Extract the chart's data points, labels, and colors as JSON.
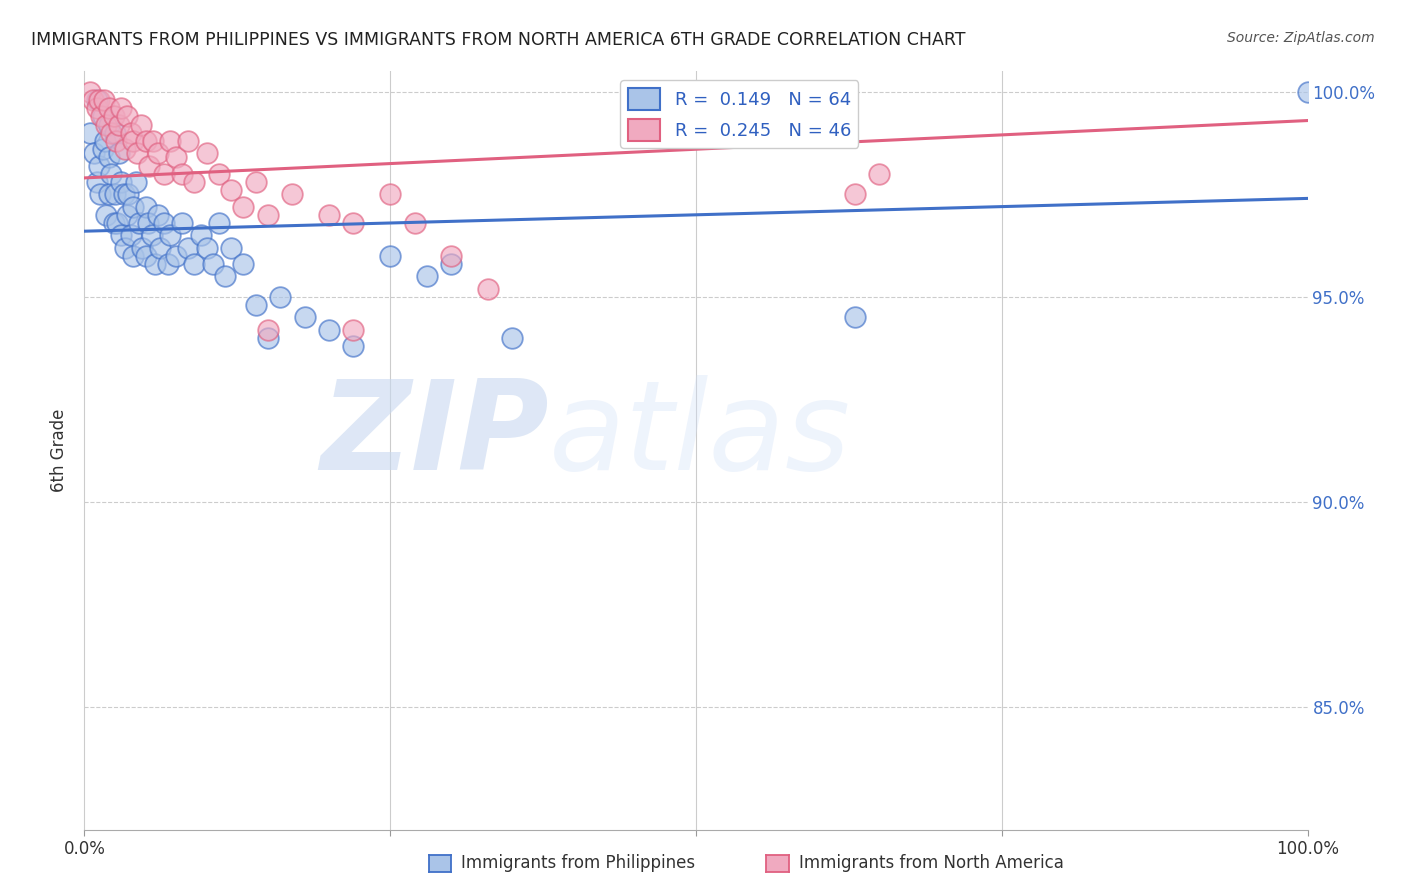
{
  "title": "IMMIGRANTS FROM PHILIPPINES VS IMMIGRANTS FROM NORTH AMERICA 6TH GRADE CORRELATION CHART",
  "source": "Source: ZipAtlas.com",
  "ylabel": "6th Grade",
  "x_min": 0.0,
  "x_max": 1.0,
  "y_min": 0.82,
  "y_max": 1.005,
  "y_ticks": [
    0.85,
    0.9,
    0.95,
    1.0
  ],
  "y_tick_labels": [
    "85.0%",
    "90.0%",
    "95.0%",
    "100.0%"
  ],
  "blue_R": 0.149,
  "blue_N": 64,
  "pink_R": 0.245,
  "pink_N": 46,
  "blue_label": "Immigrants from Philippines",
  "pink_label": "Immigrants from North America",
  "blue_color": "#aac4e8",
  "pink_color": "#f0aac0",
  "blue_line_color": "#4070c8",
  "pink_line_color": "#e06080",
  "watermark_zip": "ZIP",
  "watermark_atlas": "atlas",
  "blue_line_x0": 0.0,
  "blue_line_y0": 0.966,
  "blue_line_x1": 1.0,
  "blue_line_y1": 0.974,
  "pink_line_x0": 0.0,
  "pink_line_y0": 0.979,
  "pink_line_x1": 1.0,
  "pink_line_y1": 0.993,
  "blue_x": [
    0.005,
    0.008,
    0.01,
    0.01,
    0.012,
    0.013,
    0.015,
    0.015,
    0.017,
    0.018,
    0.02,
    0.02,
    0.02,
    0.022,
    0.024,
    0.025,
    0.025,
    0.027,
    0.028,
    0.03,
    0.03,
    0.032,
    0.033,
    0.035,
    0.036,
    0.038,
    0.04,
    0.04,
    0.042,
    0.045,
    0.047,
    0.05,
    0.05,
    0.052,
    0.055,
    0.058,
    0.06,
    0.062,
    0.065,
    0.068,
    0.07,
    0.075,
    0.08,
    0.085,
    0.09,
    0.095,
    0.1,
    0.105,
    0.11,
    0.115,
    0.12,
    0.13,
    0.14,
    0.15,
    0.16,
    0.18,
    0.2,
    0.22,
    0.25,
    0.28,
    0.3,
    0.35,
    0.63,
    1.0
  ],
  "blue_y": [
    0.99,
    0.985,
    0.998,
    0.978,
    0.982,
    0.975,
    0.994,
    0.986,
    0.988,
    0.97,
    0.992,
    0.984,
    0.975,
    0.98,
    0.968,
    0.99,
    0.975,
    0.968,
    0.985,
    0.978,
    0.965,
    0.975,
    0.962,
    0.97,
    0.975,
    0.965,
    0.972,
    0.96,
    0.978,
    0.968,
    0.962,
    0.972,
    0.96,
    0.968,
    0.965,
    0.958,
    0.97,
    0.962,
    0.968,
    0.958,
    0.965,
    0.96,
    0.968,
    0.962,
    0.958,
    0.965,
    0.962,
    0.958,
    0.968,
    0.955,
    0.962,
    0.958,
    0.948,
    0.94,
    0.95,
    0.945,
    0.942,
    0.938,
    0.96,
    0.955,
    0.958,
    0.94,
    0.945,
    1.0
  ],
  "pink_x": [
    0.005,
    0.007,
    0.01,
    0.012,
    0.014,
    0.016,
    0.018,
    0.02,
    0.022,
    0.024,
    0.026,
    0.028,
    0.03,
    0.033,
    0.035,
    0.038,
    0.04,
    0.043,
    0.046,
    0.05,
    0.053,
    0.056,
    0.06,
    0.065,
    0.07,
    0.075,
    0.08,
    0.085,
    0.09,
    0.1,
    0.11,
    0.12,
    0.13,
    0.14,
    0.15,
    0.17,
    0.2,
    0.22,
    0.25,
    0.27,
    0.3,
    0.33,
    0.15,
    0.22,
    0.63,
    0.65
  ],
  "pink_y": [
    1.0,
    0.998,
    0.996,
    0.998,
    0.994,
    0.998,
    0.992,
    0.996,
    0.99,
    0.994,
    0.988,
    0.992,
    0.996,
    0.986,
    0.994,
    0.99,
    0.988,
    0.985,
    0.992,
    0.988,
    0.982,
    0.988,
    0.985,
    0.98,
    0.988,
    0.984,
    0.98,
    0.988,
    0.978,
    0.985,
    0.98,
    0.976,
    0.972,
    0.978,
    0.97,
    0.975,
    0.97,
    0.968,
    0.975,
    0.968,
    0.96,
    0.952,
    0.942,
    0.942,
    0.975,
    0.98
  ]
}
